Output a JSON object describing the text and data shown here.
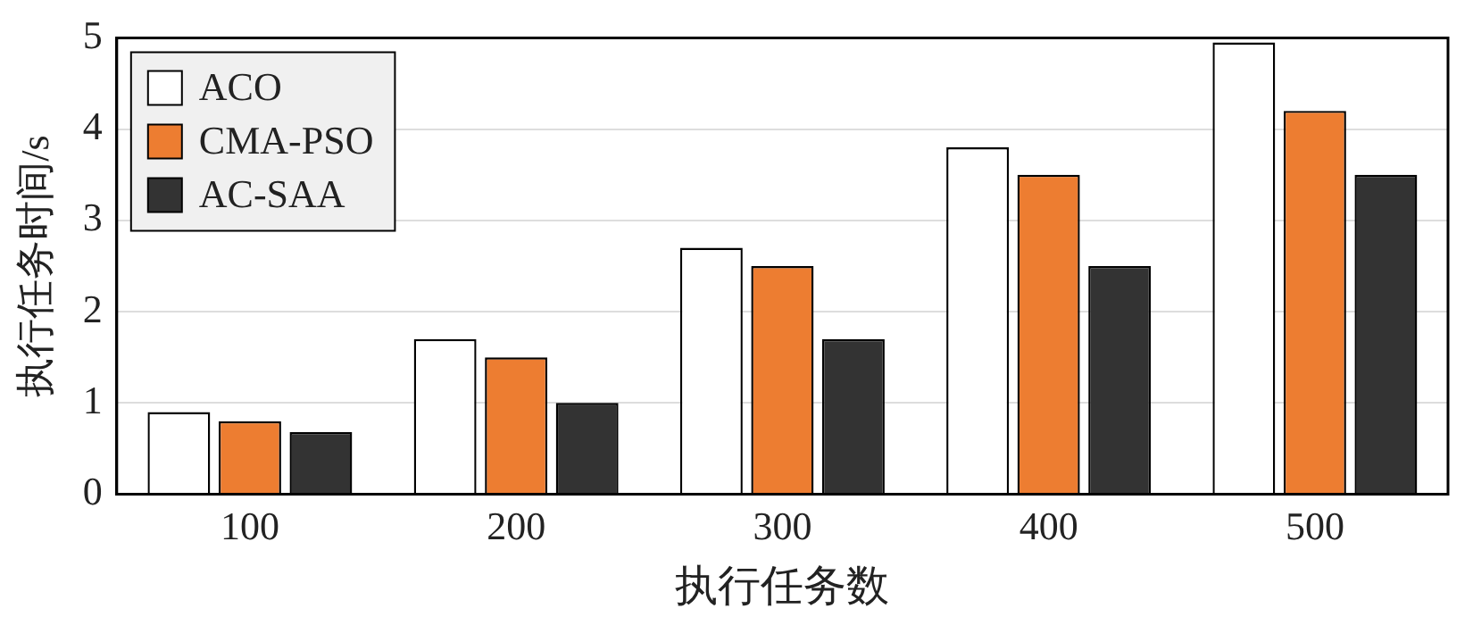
{
  "chart_data": {
    "type": "bar",
    "xlabel": "执行任务数",
    "ylabel": "执行任务时间/s",
    "categories": [
      "100",
      "200",
      "300",
      "400",
      "500"
    ],
    "series": [
      {
        "name": "ACO",
        "color": "#ffffff",
        "values": [
          0.9,
          1.7,
          2.7,
          3.8,
          4.95
        ]
      },
      {
        "name": "CMA-PSO",
        "color": "#ed7d31",
        "values": [
          0.8,
          1.5,
          2.5,
          3.5,
          4.2
        ]
      },
      {
        "name": "AC-SAA",
        "color": "#333333",
        "values": [
          0.68,
          1.0,
          1.7,
          2.5,
          3.5
        ]
      }
    ],
    "ylim": [
      0,
      5
    ],
    "yticks": [
      0,
      1,
      2,
      3,
      4,
      5
    ],
    "grid": "y",
    "legend": "top left"
  }
}
